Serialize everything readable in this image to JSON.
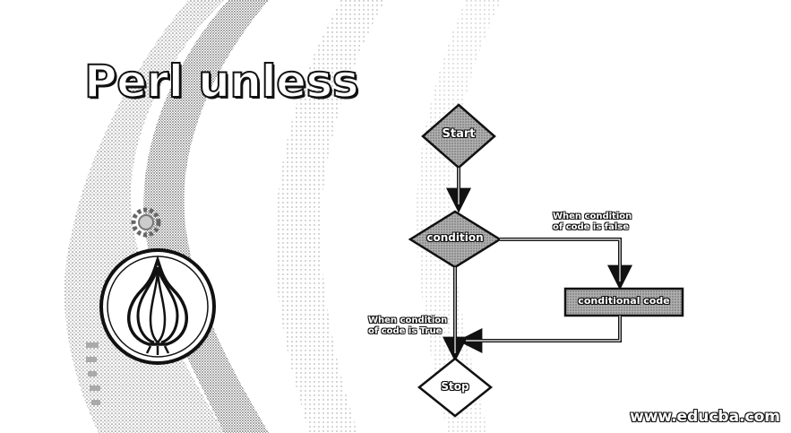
{
  "title": "Perl unless",
  "flowchart": {
    "start_label": "Start",
    "condition_label": "condition",
    "conditional_code_label": "conditional code",
    "stop_label": "Stop",
    "false_branch_line1": "When condition",
    "false_branch_line2": "of code is false",
    "true_branch_line1": "When condition",
    "true_branch_line2": "of code is True"
  },
  "watermark": "www.educba.com",
  "colors": {
    "stipple": "#888888",
    "node_fill": "#9a9a9a",
    "outline": "#111111",
    "background": "#ffffff"
  },
  "logo_icon": "perl-onion-icon",
  "gear_icon": "gear-icon"
}
